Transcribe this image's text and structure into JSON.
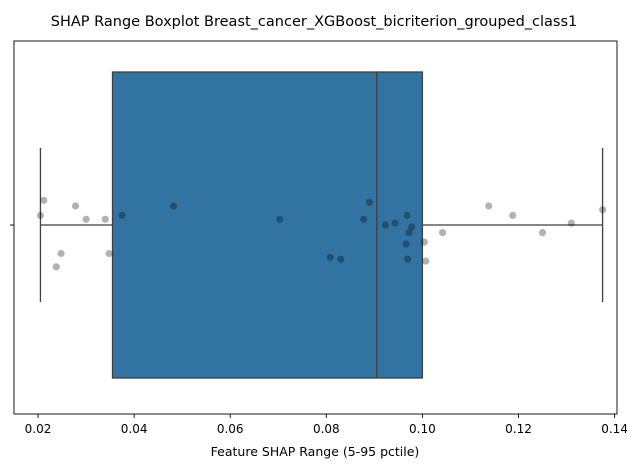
{
  "chart_data": {
    "type": "boxplot",
    "title": "SHAP Range Boxplot Breast_cancer_XGBoost_bicriterion_grouped_class1",
    "xlabel": "Feature SHAP Range (5-95 pctile)",
    "ylabel": "",
    "xlim": [
      0.015,
      0.1405
    ],
    "xticks": [
      "0.02",
      "0.04",
      "0.06",
      "0.08",
      "0.10",
      "0.12",
      "0.14"
    ],
    "xtick_values": [
      0.02,
      0.04,
      0.06,
      0.08,
      0.1,
      0.12,
      0.14
    ],
    "ytick_label": "",
    "grid": false,
    "box": {
      "whisker_low": 0.0205,
      "q1": 0.0355,
      "median": 0.0905,
      "q3": 0.1,
      "whisker_high": 0.1375,
      "color": "#3274a1"
    },
    "points": [
      {
        "x": 0.0205,
        "offset": 0.05
      },
      {
        "x": 0.0212,
        "offset": 0.13
      },
      {
        "x": 0.0238,
        "offset": -0.22
      },
      {
        "x": 0.0248,
        "offset": -0.15
      },
      {
        "x": 0.0278,
        "offset": 0.1
      },
      {
        "x": 0.03,
        "offset": 0.03
      },
      {
        "x": 0.034,
        "offset": 0.03
      },
      {
        "x": 0.0348,
        "offset": -0.15
      },
      {
        "x": 0.0375,
        "offset": 0.05
      },
      {
        "x": 0.0482,
        "offset": 0.1
      },
      {
        "x": 0.0703,
        "offset": 0.03
      },
      {
        "x": 0.0808,
        "offset": -0.17
      },
      {
        "x": 0.083,
        "offset": -0.18
      },
      {
        "x": 0.0878,
        "offset": 0.03
      },
      {
        "x": 0.089,
        "offset": 0.12
      },
      {
        "x": 0.0923,
        "offset": 0.0
      },
      {
        "x": 0.0943,
        "offset": 0.01
      },
      {
        "x": 0.0966,
        "offset": -0.1
      },
      {
        "x": 0.0968,
        "offset": 0.05
      },
      {
        "x": 0.0969,
        "offset": -0.18
      },
      {
        "x": 0.0972,
        "offset": -0.04
      },
      {
        "x": 0.0978,
        "offset": -0.01
      },
      {
        "x": 0.1004,
        "offset": -0.09
      },
      {
        "x": 0.1007,
        "offset": -0.19
      },
      {
        "x": 0.1042,
        "offset": -0.04
      },
      {
        "x": 0.1138,
        "offset": 0.1
      },
      {
        "x": 0.1188,
        "offset": 0.05
      },
      {
        "x": 0.125,
        "offset": -0.04
      },
      {
        "x": 0.131,
        "offset": 0.01
      },
      {
        "x": 0.1375,
        "offset": 0.08
      }
    ],
    "point_color": "#000000",
    "point_alpha": 0.3
  }
}
